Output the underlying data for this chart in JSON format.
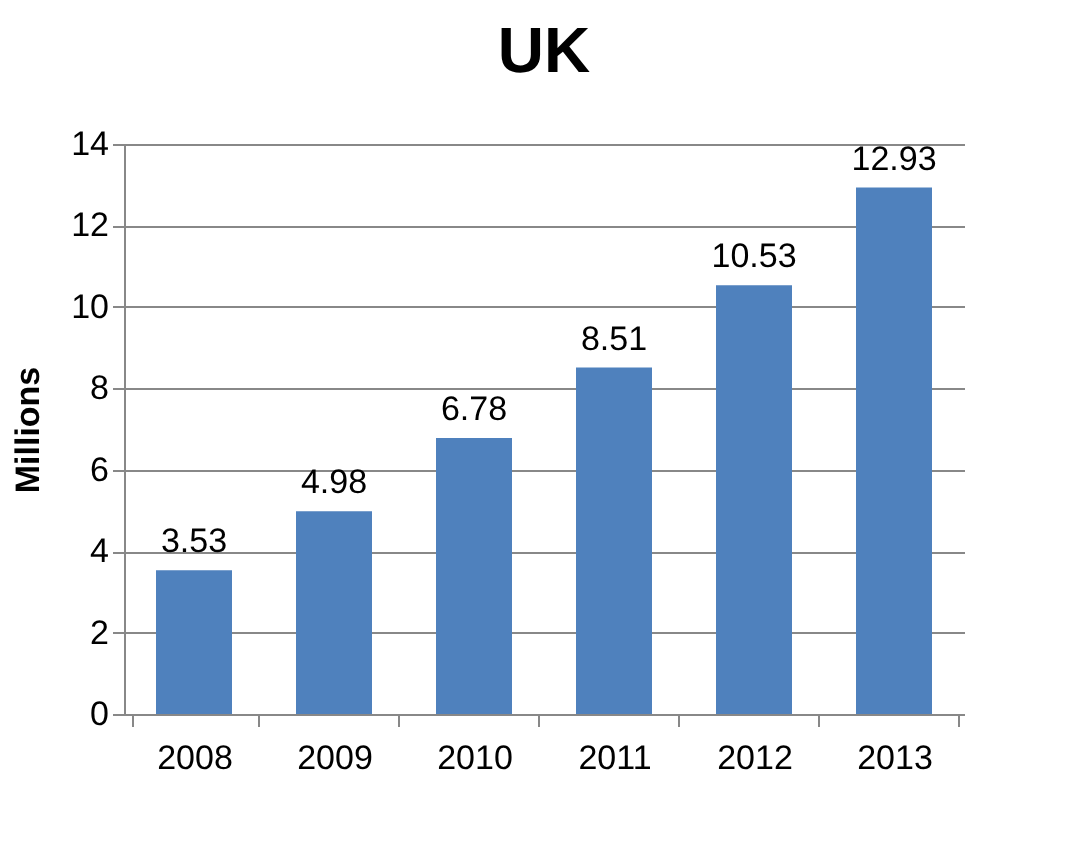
{
  "chart_data": {
    "type": "bar",
    "title": "UK",
    "ylabel": "Millions",
    "categories": [
      "2008",
      "2009",
      "2010",
      "2011",
      "2012",
      "2013"
    ],
    "values": [
      3.53,
      4.98,
      6.78,
      8.51,
      10.53,
      12.93
    ],
    "color": "#4f81bd",
    "ylim": [
      0,
      14
    ],
    "yticks": [
      0,
      2,
      4,
      6,
      8,
      10,
      12,
      14
    ],
    "grid": "y",
    "data_labels": true
  }
}
